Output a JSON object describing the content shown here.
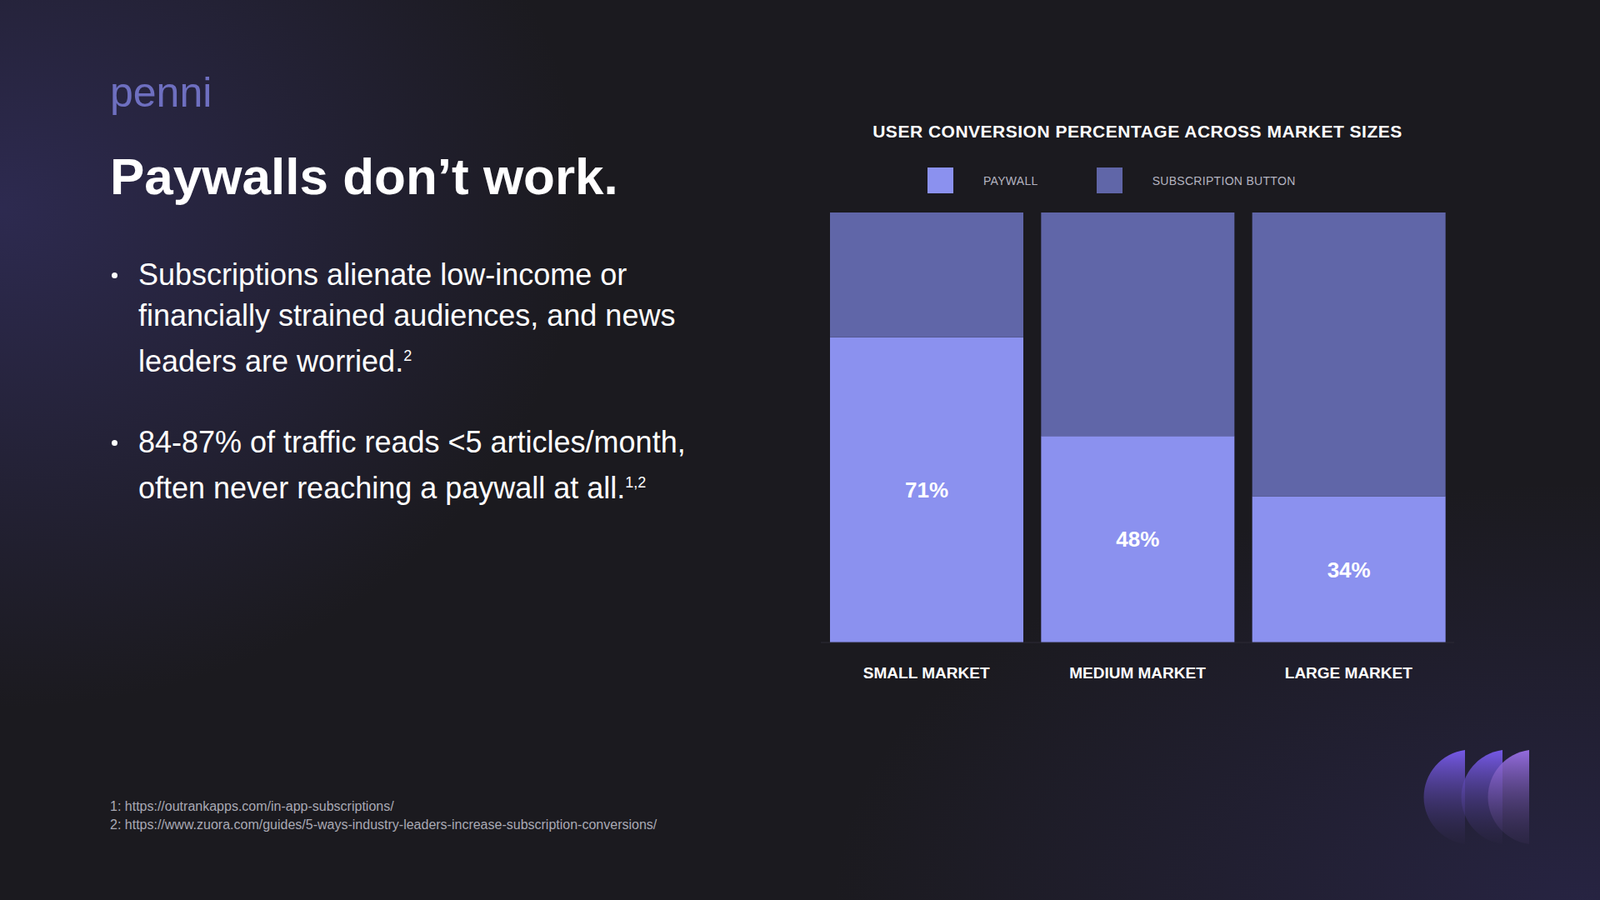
{
  "brand": "penni",
  "headline": "Paywalls don’t work.",
  "bullets": [
    {
      "text": "Subscriptions alienate low-income or financially strained audiences, and news leaders are worried.",
      "refs": "2"
    },
    {
      "text": "84-87% of traffic reads <5 articles/month, often never reaching a paywall at all.",
      "refs": "1,2"
    }
  ],
  "footnotes": [
    "1: https://outrankapps.com/in-app-subscriptions/",
    "2: https://www.zuora.com/guides/5-ways-industry-leaders-increase-subscription-conversions/"
  ],
  "chart_data": {
    "type": "bar",
    "title": "USER CONVERSION PERCENTAGE ACROSS MARKET SIZES",
    "categories": [
      "SMALL MARKET",
      "MEDIUM MARKET",
      "LARGE MARKET"
    ],
    "series": [
      {
        "name": "PAYWALL",
        "color": "#8b91ef",
        "values": [
          71,
          48,
          34
        ],
        "value_labels": [
          "71%",
          "48%",
          "34%"
        ],
        "data_labels": true
      },
      {
        "name": "SUBSCRIPTION BUTTON",
        "color": "#6066a8",
        "values": [
          29,
          52,
          66
        ]
      }
    ],
    "stacked": true,
    "ylim": [
      0,
      100
    ],
    "tick_labels": "x",
    "legend": "top",
    "grid": false
  }
}
